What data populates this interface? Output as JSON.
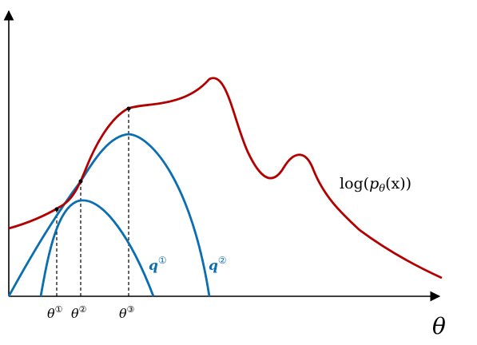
{
  "axes": {
    "x_label": "θ",
    "has_y_arrow": true,
    "has_x_arrow": true
  },
  "curves": {
    "log_likelihood": {
      "label": "log(pθ(x))",
      "label_parts": {
        "fn": "log(",
        "p": "p",
        "sub": "θ",
        "rest": "(x))"
      },
      "color": "#b30000"
    },
    "q1": {
      "label": "q",
      "superscript": "①",
      "color": "#0a6eb0"
    },
    "q2": {
      "label": "q",
      "superscript": "②",
      "color": "#0a6eb0"
    }
  },
  "ticks": [
    {
      "label": "θ",
      "superscript": "①"
    },
    {
      "label": "θ",
      "superscript": "②"
    },
    {
      "label": "θ",
      "superscript": "③"
    }
  ],
  "colors": {
    "axis": "#000000",
    "likelihood": "#b30000",
    "bound": "#0a6eb0",
    "guide": "#000000"
  }
}
